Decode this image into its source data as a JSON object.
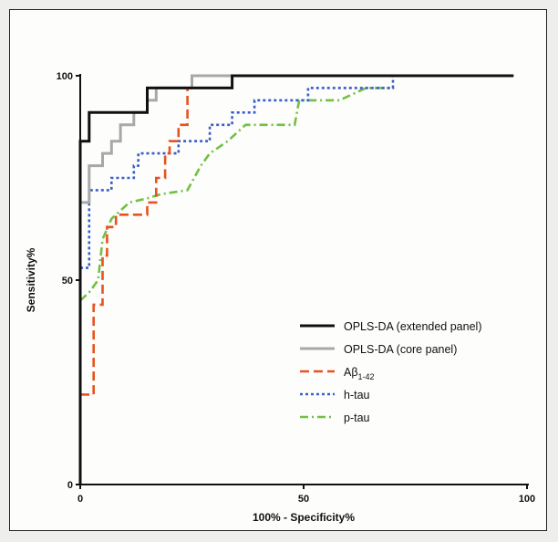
{
  "chart_data": {
    "type": "line",
    "title": "",
    "xlabel": "100% - Specificity%",
    "ylabel": "Sensitivity%",
    "xlim": [
      0,
      100
    ],
    "ylim": [
      0,
      100
    ],
    "x_ticks": [
      "0",
      "50",
      "100"
    ],
    "y_ticks": [
      "0",
      "50",
      "100"
    ],
    "grid": false,
    "legend_position": "bottom-right",
    "series": [
      {
        "name": "OPLS-DA (extended panel)",
        "legend_main": "OPLS-DA (extended panel)",
        "legend_sub": "",
        "color": "#111111",
        "style": "solid",
        "points": [
          [
            0,
            0
          ],
          [
            0,
            84
          ],
          [
            2,
            84
          ],
          [
            2,
            91
          ],
          [
            15,
            91
          ],
          [
            15,
            97
          ],
          [
            34,
            97
          ],
          [
            34,
            100
          ],
          [
            97,
            100
          ]
        ]
      },
      {
        "name": "OPLS-DA (core panel)",
        "legend_main": "OPLS-DA (core panel)",
        "legend_sub": "",
        "color": "#a8a8a8",
        "style": "solid",
        "points": [
          [
            0,
            0
          ],
          [
            0,
            69
          ],
          [
            2,
            69
          ],
          [
            2,
            78
          ],
          [
            5,
            78
          ],
          [
            5,
            81
          ],
          [
            7,
            81
          ],
          [
            7,
            84
          ],
          [
            9,
            84
          ],
          [
            9,
            88
          ],
          [
            12,
            88
          ],
          [
            12,
            91
          ],
          [
            15,
            91
          ],
          [
            15,
            94
          ],
          [
            17,
            94
          ],
          [
            17,
            97
          ],
          [
            25,
            97
          ],
          [
            25,
            100
          ],
          [
            34,
            100
          ]
        ]
      },
      {
        "name": "Aβ1-42",
        "legend_main": "Aβ",
        "legend_sub": "1-42",
        "color": "#e8521f",
        "style": "dash",
        "points": [
          [
            0,
            22
          ],
          [
            3,
            22
          ],
          [
            3,
            44
          ],
          [
            5,
            44
          ],
          [
            5,
            56
          ],
          [
            6,
            56
          ],
          [
            6,
            63
          ],
          [
            8,
            63
          ],
          [
            8,
            66
          ],
          [
            15,
            66
          ],
          [
            15,
            69
          ],
          [
            17,
            69
          ],
          [
            17,
            75
          ],
          [
            19,
            75
          ],
          [
            19,
            81
          ],
          [
            20,
            81
          ],
          [
            20,
            84
          ],
          [
            22,
            84
          ],
          [
            22,
            88
          ],
          [
            24,
            88
          ],
          [
            24,
            97
          ],
          [
            25,
            97
          ],
          [
            25,
            100
          ],
          [
            29,
            100
          ]
        ]
      },
      {
        "name": "h-tau",
        "legend_main": "h-tau",
        "legend_sub": "",
        "color": "#3a5fc8",
        "style": "dot",
        "points": [
          [
            0,
            53
          ],
          [
            2,
            53
          ],
          [
            2,
            72
          ],
          [
            7,
            72
          ],
          [
            7,
            75
          ],
          [
            12,
            75
          ],
          [
            12,
            78
          ],
          [
            13,
            78
          ],
          [
            13,
            81
          ],
          [
            22,
            81
          ],
          [
            22,
            84
          ],
          [
            29,
            84
          ],
          [
            29,
            88
          ],
          [
            34,
            88
          ],
          [
            34,
            91
          ],
          [
            39,
            91
          ],
          [
            39,
            94
          ],
          [
            51,
            94
          ],
          [
            51,
            97
          ],
          [
            70,
            97
          ],
          [
            70,
            100
          ]
        ]
      },
      {
        "name": "p-tau",
        "legend_main": "p-tau",
        "legend_sub": "",
        "color": "#72c045",
        "style": "dashdot",
        "points": [
          [
            0,
            45
          ],
          [
            2,
            47
          ],
          [
            4,
            50
          ],
          [
            5,
            60
          ],
          [
            7,
            65
          ],
          [
            9,
            67
          ],
          [
            11,
            69
          ],
          [
            15,
            70
          ],
          [
            18,
            71
          ],
          [
            24,
            72
          ],
          [
            27,
            78
          ],
          [
            29,
            81
          ],
          [
            33,
            84
          ],
          [
            37,
            88
          ],
          [
            48,
            88
          ],
          [
            49,
            94
          ],
          [
            58,
            94
          ],
          [
            64,
            97
          ],
          [
            70,
            97
          ]
        ]
      }
    ]
  }
}
